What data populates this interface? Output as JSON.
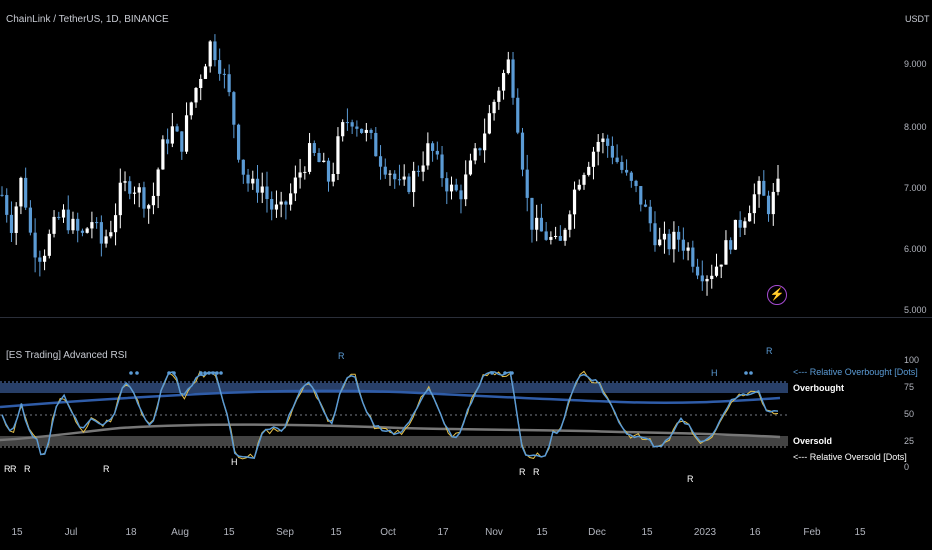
{
  "header": {
    "title": "ChainLink / TetherUS, 1D, BINANCE",
    "currency": "USDT"
  },
  "price_axis": [
    "9.000",
    "8.000",
    "7.000",
    "6.000",
    "5.000"
  ],
  "indicator": {
    "title": "[ES Trading] Advanced RSI",
    "axis": [
      "100",
      "75",
      "50",
      "25",
      "0"
    ],
    "overbought_label": "Overbought",
    "oversold_label": "Oversold",
    "rel_overbought_label": "<--- Relative Overbought [Dots]",
    "rel_oversold_label": "<--- Relative Oversold [Dots]",
    "top_markers": [
      "R",
      "H",
      "R"
    ],
    "bottom_markers": [
      "R",
      "R",
      "R",
      "R",
      "H",
      "R",
      "R",
      "R"
    ]
  },
  "time_axis": [
    "15",
    "Jul",
    "18",
    "Aug",
    "15",
    "Sep",
    "15",
    "Oct",
    "17",
    "Nov",
    "15",
    "Dec",
    "15",
    "2023",
    "16",
    "Feb",
    "15"
  ],
  "colors": {
    "up": "#ffffff",
    "down": "#5b9bd5",
    "rsi": "#5b9bd5",
    "signal": "#e5c04a",
    "band": "#2f4a7a",
    "oversold_band": "#5a5a5a",
    "bolt": "#a64bd3"
  },
  "chart_data": {
    "type": "candlestick",
    "symbol": "LINK/USDT",
    "interval": "1D",
    "y_range": [
      5.0,
      9.5
    ],
    "close_path": [
      6.8,
      6.3,
      7.1,
      6.0,
      5.8,
      6.2,
      6.5,
      6.3,
      6.1,
      6.4,
      6.0,
      6.3,
      6.9,
      7.0,
      6.8,
      6.6,
      7.5,
      7.9,
      7.6,
      8.3,
      8.8,
      9.3,
      8.9,
      8.3,
      7.3,
      6.9,
      7.0,
      6.6,
      6.5,
      6.8,
      7.2,
      7.5,
      7.3,
      7.0,
      7.8,
      8.1,
      7.9,
      7.7,
      7.4,
      7.2,
      6.9,
      7.0,
      7.3,
      7.6,
      7.2,
      6.9,
      6.8,
      7.2,
      7.6,
      8.1,
      8.6,
      9.0,
      7.8,
      6.4,
      6.2,
      6.1,
      5.9,
      6.6,
      7.1,
      7.4,
      7.7,
      7.6,
      7.3,
      7.0,
      6.8,
      6.4,
      6.0,
      6.0,
      6.1,
      5.9,
      5.6,
      5.5,
      5.7,
      6.0,
      6.3,
      6.6,
      6.9,
      6.6,
      6.9
    ],
    "rsi": {
      "overbought": 75,
      "oversold": 25,
      "midline": 50,
      "axis_range": [
        0,
        100
      ]
    }
  }
}
